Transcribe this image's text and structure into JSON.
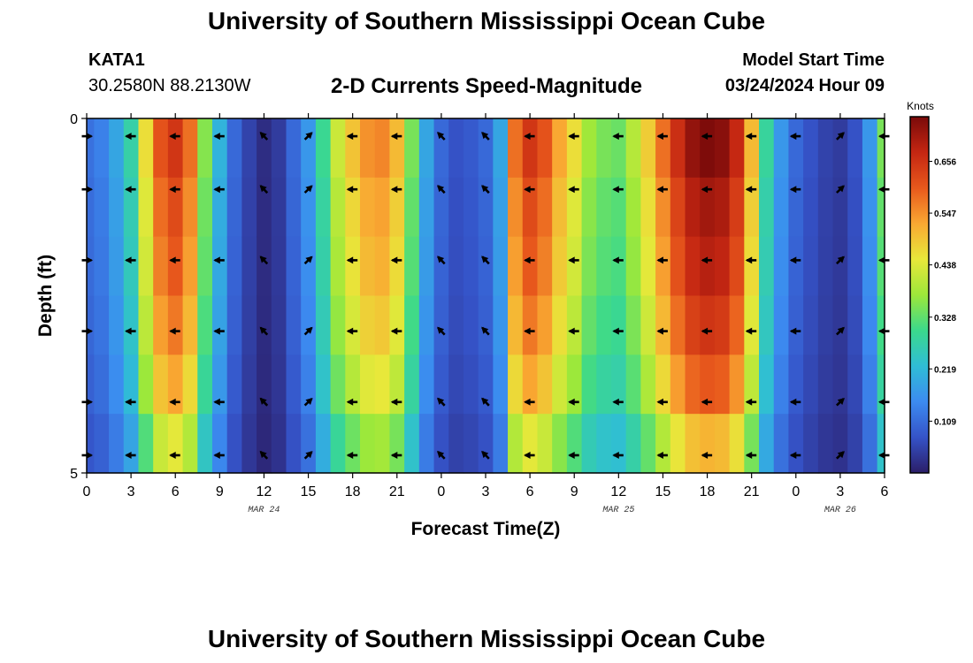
{
  "header": {
    "title": "University of Southern Mississippi Ocean Cube",
    "station_id": "KATA1",
    "station_coords": "30.2580N  88.2130W",
    "product": "2-D Currents Speed-Magnitude",
    "model_start_label": "Model Start Time",
    "model_start_value": "03/24/2024 Hour 09"
  },
  "footer": {
    "title": "University of Southern Mississippi Ocean Cube"
  },
  "colors": {
    "palette": [
      "#2b1e68",
      "#3553c8",
      "#3c8bf0",
      "#2fbdd6",
      "#3bd98c",
      "#9de83a",
      "#e8e83a",
      "#f9a832",
      "#e8581c",
      "#c42612",
      "#7a0a0a"
    ],
    "arrow": "#000000",
    "axis": "#000000"
  },
  "chart_data": {
    "type": "heatmap",
    "title": "2-D Currents Speed-Magnitude",
    "xlabel": "Forecast Time(Z)",
    "ylabel": "Depth (ft)",
    "x_start_hour": 0,
    "x_end_hour": 54,
    "x_ticks": [
      0,
      3,
      6,
      9,
      12,
      15,
      18,
      21,
      24,
      27,
      30,
      33,
      36,
      39,
      42,
      45,
      48,
      51,
      54
    ],
    "x_tick_labels": [
      "0",
      "3",
      "6",
      "9",
      "12",
      "15",
      "18",
      "21",
      "0",
      "3",
      "6",
      "9",
      "12",
      "15",
      "18",
      "21",
      "0",
      "3",
      "6"
    ],
    "date_labels": [
      {
        "hour": 12,
        "label": "MAR 24"
      },
      {
        "hour": 36,
        "label": "MAR 25"
      },
      {
        "hour": 51,
        "label": "MAR 26"
      }
    ],
    "ylim": [
      0,
      5
    ],
    "y_ticks": [
      0,
      5
    ],
    "y_tick_labels": [
      "0",
      "5"
    ],
    "depth_rows": [
      0.25,
      1.0,
      2.0,
      3.0,
      4.0,
      4.75
    ],
    "colorbar": {
      "label": "Knots",
      "min": 0.0,
      "max": 0.75,
      "ticks": [
        0.109,
        0.219,
        0.328,
        0.438,
        0.547,
        0.656
      ],
      "tick_labels": [
        "0.109",
        "0.219",
        "0.328",
        "0.438",
        "0.547",
        "0.656"
      ]
    },
    "speed_profile": [
      {
        "hour": 0,
        "speed": 0.11
      },
      {
        "hour": 1,
        "speed": 0.13
      },
      {
        "hour": 2,
        "speed": 0.18
      },
      {
        "hour": 3,
        "speed": 0.26
      },
      {
        "hour": 4,
        "speed": 0.44
      },
      {
        "hour": 5,
        "speed": 0.58
      },
      {
        "hour": 6,
        "speed": 0.62
      },
      {
        "hour": 7,
        "speed": 0.55
      },
      {
        "hour": 8,
        "speed": 0.34
      },
      {
        "hour": 9,
        "speed": 0.2
      },
      {
        "hour": 10,
        "speed": 0.1
      },
      {
        "hour": 11,
        "speed": 0.05
      },
      {
        "hour": 12,
        "speed": 0.02
      },
      {
        "hour": 13,
        "speed": 0.04
      },
      {
        "hour": 14,
        "speed": 0.1
      },
      {
        "hour": 15,
        "speed": 0.16
      },
      {
        "hour": 16,
        "speed": 0.28
      },
      {
        "hour": 17,
        "speed": 0.4
      },
      {
        "hour": 18,
        "speed": 0.47
      },
      {
        "hour": 19,
        "speed": 0.52
      },
      {
        "hour": 20,
        "speed": 0.53
      },
      {
        "hour": 21,
        "speed": 0.48
      },
      {
        "hour": 22,
        "speed": 0.33
      },
      {
        "hour": 23,
        "speed": 0.18
      },
      {
        "hour": 24,
        "speed": 0.1
      },
      {
        "hour": 25,
        "speed": 0.07
      },
      {
        "hour": 26,
        "speed": 0.08
      },
      {
        "hour": 27,
        "speed": 0.1
      },
      {
        "hour": 28,
        "speed": 0.18
      },
      {
        "hour": 29,
        "speed": 0.55
      },
      {
        "hour": 30,
        "speed": 0.62
      },
      {
        "hour": 31,
        "speed": 0.58
      },
      {
        "hour": 32,
        "speed": 0.5
      },
      {
        "hour": 33,
        "speed": 0.44
      },
      {
        "hour": 34,
        "speed": 0.36
      },
      {
        "hour": 35,
        "speed": 0.33
      },
      {
        "hour": 36,
        "speed": 0.32
      },
      {
        "hour": 37,
        "speed": 0.38
      },
      {
        "hour": 38,
        "speed": 0.46
      },
      {
        "hour": 39,
        "speed": 0.55
      },
      {
        "hour": 40,
        "speed": 0.63
      },
      {
        "hour": 41,
        "speed": 0.69
      },
      {
        "hour": 42,
        "speed": 0.71
      },
      {
        "hour": 43,
        "speed": 0.7
      },
      {
        "hour": 44,
        "speed": 0.64
      },
      {
        "hour": 45,
        "speed": 0.48
      },
      {
        "hour": 46,
        "speed": 0.27
      },
      {
        "hour": 47,
        "speed": 0.16
      },
      {
        "hour": 48,
        "speed": 0.1
      },
      {
        "hour": 49,
        "speed": 0.07
      },
      {
        "hour": 50,
        "speed": 0.05
      },
      {
        "hour": 51,
        "speed": 0.04
      },
      {
        "hour": 52,
        "speed": 0.07
      },
      {
        "hour": 53,
        "speed": 0.16
      },
      {
        "hour": 54,
        "speed": 0.33
      }
    ],
    "depth_factor": [
      1.05,
      1.0,
      0.97,
      0.92,
      0.85,
      0.72
    ],
    "arrows": [
      {
        "hour": 0,
        "direction": "E"
      },
      {
        "hour": 3,
        "direction": "W"
      },
      {
        "hour": 6,
        "direction": "W"
      },
      {
        "hour": 9,
        "direction": "W"
      },
      {
        "hour": 12,
        "direction": "NW"
      },
      {
        "hour": 15,
        "direction": "NE"
      },
      {
        "hour": 18,
        "direction": "W"
      },
      {
        "hour": 21,
        "direction": "W"
      },
      {
        "hour": 24,
        "direction": "NW"
      },
      {
        "hour": 27,
        "direction": "NW"
      },
      {
        "hour": 30,
        "direction": "W"
      },
      {
        "hour": 33,
        "direction": "W"
      },
      {
        "hour": 36,
        "direction": "W"
      },
      {
        "hour": 39,
        "direction": "W"
      },
      {
        "hour": 42,
        "direction": "W"
      },
      {
        "hour": 45,
        "direction": "W"
      },
      {
        "hour": 48,
        "direction": "W"
      },
      {
        "hour": 51,
        "direction": "NE"
      },
      {
        "hour": 54,
        "direction": "W"
      }
    ]
  }
}
